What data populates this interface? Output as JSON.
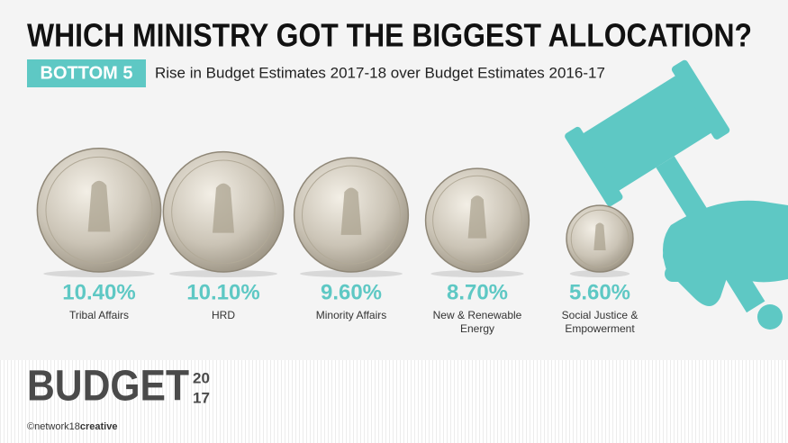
{
  "chart_data": {
    "type": "coin",
    "title": "WHICH MINISTRY GOT THE BIGGEST ALLOCATION?",
    "badge": "BOTTOM 5",
    "subtitle": "Rise in Budget Estimates 2017-18 over Budget Estimates 2016-17",
    "categories": [
      "Tribal Affairs",
      "HRD",
      "Minority Affairs",
      "New & Renewable Energy",
      "Social Justice & Empowerment"
    ],
    "values": [
      10.4,
      10.1,
      9.6,
      8.7,
      5.6
    ],
    "value_labels": [
      "10.40%",
      "10.10%",
      "9.60%",
      "8.70%",
      "5.60%"
    ],
    "color": "#5ec8c4"
  },
  "footer": {
    "logo": "BUDGET",
    "year_top": "20",
    "year_bottom": "17",
    "credit": "©network18",
    "credit_bold": "creative"
  }
}
